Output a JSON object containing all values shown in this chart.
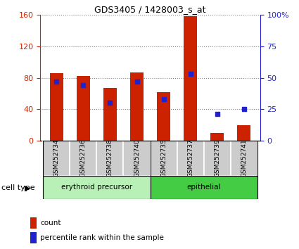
{
  "title": "GDS3405 / 1428003_s_at",
  "samples": [
    "GSM252734",
    "GSM252736",
    "GSM252738",
    "GSM252740",
    "GSM252735",
    "GSM252737",
    "GSM252739",
    "GSM252741"
  ],
  "counts": [
    86,
    82,
    67,
    87,
    62,
    158,
    10,
    20
  ],
  "percentile_ranks": [
    47,
    44,
    30,
    47,
    33,
    53,
    21,
    25
  ],
  "cell_type_label": "cell type",
  "erythroid_label": "erythroid precursor",
  "epithelial_label": "epithelial",
  "legend_count": "count",
  "legend_pct": "percentile rank within the sample",
  "ylim_left": [
    0,
    160
  ],
  "ylim_right": [
    0,
    100
  ],
  "yticks_left": [
    0,
    40,
    80,
    120,
    160
  ],
  "yticks_right": [
    0,
    25,
    50,
    75,
    100
  ],
  "ytick_labels_right": [
    "0",
    "25",
    "50",
    "75",
    "100%"
  ],
  "bar_color": "#cc2200",
  "dot_color": "#2222cc",
  "erythroid_bg": "#b8f0b8",
  "epithelial_bg": "#44cc44",
  "sample_bg": "#cccccc",
  "bar_width": 0.5,
  "n_erythroid": 4
}
